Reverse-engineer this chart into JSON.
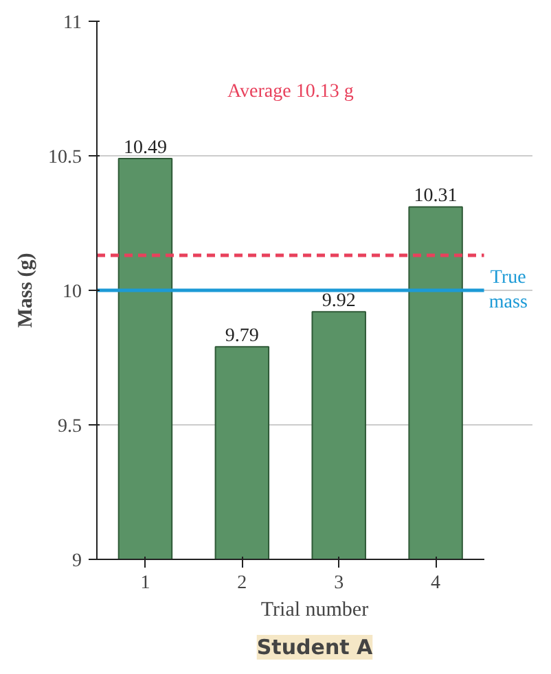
{
  "chart_data": {
    "type": "bar",
    "title": "Student A",
    "xlabel": "Trial number",
    "ylabel": "Mass (g)",
    "categories": [
      "1",
      "2",
      "3",
      "4"
    ],
    "values": [
      10.49,
      9.79,
      9.92,
      10.31
    ],
    "color": "#5a9366",
    "ylim": [
      9,
      11
    ],
    "yticks": [
      9,
      9.5,
      10,
      10.5,
      11
    ],
    "grid": "y",
    "data_labels": true,
    "ref_lines": [
      {
        "axis": "y",
        "value": 10,
        "label": "True mass",
        "color": "#1c9ad6",
        "line_style": "solid"
      },
      {
        "axis": "y",
        "value": 10.13,
        "label": "Average 10.13 g",
        "color": "#e8415c",
        "line_style": "dashed"
      }
    ]
  }
}
